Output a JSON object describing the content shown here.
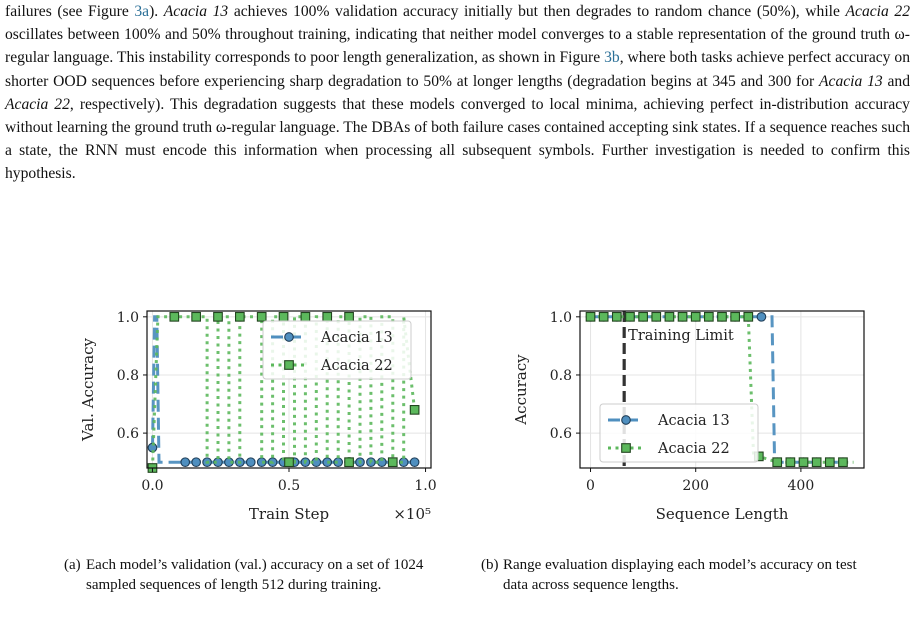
{
  "paragraph": {
    "s1": "failures (see Figure ",
    "ref_3a": "3a",
    "s2": "). ",
    "m13": "Acacia 13",
    "s3": " achieves 100% validation accuracy initially but then degrades to random chance (50%), while ",
    "m22": "Acacia 22",
    "s4": " oscillates between 100% and 50% throughout training, indicating that neither model converges to a stable representation of the ground truth ω-regular language. This instability corresponds to poor length generalization, as shown in Figure ",
    "ref_3b": "3b",
    "s5": ", where both tasks achieve perfect accuracy on shorter OOD sequences before experiencing sharp degradation to 50% at longer lengths (degradation begins at 345 and 300 for ",
    "m13b": "Acacia 13",
    "s6": " and ",
    "m22b": "Acacia 22",
    "s7": ", respectively). This degradation suggests that these models converged to local minima, achieving perfect in-distribution accuracy without learning the ground truth ω-regular language. The DBAs of both failure cases contained accepting sink states. If a sequence reaches such a state, the RNN must encode this information when processing all subsequent symbols. Further investigation is needed to confirm this hypothesis."
  },
  "colors": {
    "acacia13": "#4f8fbf",
    "acacia22": "#5cb85c",
    "limit": "#333333"
  },
  "chart_data": [
    {
      "type": "line",
      "xlabel": "Train Step",
      "x_multiplier_label": "×10⁵",
      "ylabel": "Val. Accuracy",
      "xlim": [
        -0.02,
        1.02
      ],
      "ylim": [
        0.48,
        1.02
      ],
      "xticks": [
        0.0,
        0.5,
        1.0
      ],
      "xtick_labels": [
        "0.0",
        "0.5",
        "1.0"
      ],
      "yticks": [
        0.6,
        0.8,
        1.0
      ],
      "ytick_labels": [
        "0.6",
        "0.8",
        "1.0"
      ],
      "grid": true,
      "legend": "top-right",
      "series": [
        {
          "name": "Acacia 13",
          "style": "dashed",
          "marker": "circle",
          "x": [
            0.0,
            0.008,
            0.016,
            0.024,
            0.12,
            0.16,
            0.2,
            0.24,
            0.28,
            0.32,
            0.36,
            0.4,
            0.44,
            0.48,
            0.52,
            0.56,
            0.6,
            0.64,
            0.68,
            0.72,
            0.76,
            0.8,
            0.84,
            0.88,
            0.92,
            0.96
          ],
          "y": [
            0.55,
            1.0,
            1.0,
            0.5,
            0.5,
            0.5,
            0.5,
            0.5,
            0.5,
            0.5,
            0.5,
            0.5,
            0.5,
            0.5,
            0.5,
            0.5,
            0.5,
            0.5,
            0.5,
            0.5,
            0.5,
            0.5,
            0.5,
            0.5,
            0.5,
            0.5
          ],
          "markers_at": [
            0,
            4,
            5,
            6,
            7,
            8,
            9,
            10,
            11,
            12,
            13,
            14,
            15,
            16,
            17,
            18,
            19,
            20,
            21,
            22,
            23,
            24,
            25
          ]
        },
        {
          "name": "Acacia 22",
          "style": "dotted",
          "marker": "square",
          "x": [
            0.0,
            0.02,
            0.04,
            0.08,
            0.16,
            0.2,
            0.2,
            0.24,
            0.24,
            0.28,
            0.28,
            0.32,
            0.32,
            0.4,
            0.4,
            0.44,
            0.44,
            0.48,
            0.48,
            0.52,
            0.52,
            0.56,
            0.56,
            0.6,
            0.6,
            0.64,
            0.64,
            0.68,
            0.68,
            0.72,
            0.72,
            0.76,
            0.76,
            0.8,
            0.8,
            0.84,
            0.84,
            0.88,
            0.88,
            0.92,
            0.92,
            0.96
          ],
          "y": [
            0.48,
            1.0,
            1.0,
            1.0,
            1.0,
            1.0,
            0.5,
            0.5,
            1.0,
            1.0,
            0.5,
            0.5,
            1.0,
            1.0,
            0.5,
            0.5,
            1.0,
            1.0,
            0.5,
            0.5,
            1.0,
            1.0,
            0.5,
            0.5,
            1.0,
            1.0,
            0.5,
            0.5,
            1.0,
            1.0,
            0.5,
            0.5,
            1.0,
            1.0,
            0.5,
            0.5,
            1.0,
            1.0,
            0.5,
            0.5,
            1.0,
            0.68
          ],
          "markers": [
            [
              0.0,
              0.48
            ],
            [
              0.08,
              1.0
            ],
            [
              0.16,
              1.0
            ],
            [
              0.24,
              1.0
            ],
            [
              0.32,
              1.0
            ],
            [
              0.4,
              1.0
            ],
            [
              0.48,
              1.0
            ],
            [
              0.56,
              1.0
            ],
            [
              0.64,
              1.0
            ],
            [
              0.72,
              1.0
            ],
            [
              0.5,
              0.5
            ],
            [
              0.72,
              0.5
            ],
            [
              0.88,
              0.5
            ],
            [
              0.96,
              0.68
            ]
          ]
        }
      ]
    },
    {
      "type": "line",
      "xlabel": "Sequence Length",
      "ylabel": "Accuracy",
      "xlim": [
        -20,
        520
      ],
      "ylim": [
        0.48,
        1.02
      ],
      "xticks": [
        0,
        200,
        400
      ],
      "xtick_labels": [
        "0",
        "200",
        "400"
      ],
      "yticks": [
        0.6,
        0.8,
        1.0
      ],
      "ytick_labels": [
        "0.6",
        "0.8",
        "1.0"
      ],
      "grid": true,
      "legend": "bottom-left",
      "annotation": {
        "text": "Training Limit",
        "x": 64
      },
      "series": [
        {
          "name": "Acacia 13",
          "style": "dashed",
          "marker": "circle",
          "x": [
            0,
            25,
            50,
            75,
            100,
            125,
            150,
            175,
            200,
            225,
            250,
            275,
            300,
            325,
            345,
            350,
            355,
            380,
            405,
            430,
            455,
            480
          ],
          "y": [
            1.0,
            1.0,
            1.0,
            1.0,
            1.0,
            1.0,
            1.0,
            1.0,
            1.0,
            1.0,
            1.0,
            1.0,
            1.0,
            1.0,
            1.0,
            0.5,
            0.5,
            0.5,
            0.5,
            0.5,
            0.5,
            0.5
          ],
          "markers_at": [
            0,
            1,
            2,
            3,
            4,
            5,
            6,
            7,
            8,
            9,
            10,
            11,
            12,
            13,
            16,
            17,
            18,
            19,
            20,
            21
          ]
        },
        {
          "name": "Acacia 22",
          "style": "dotted",
          "marker": "square",
          "x": [
            0,
            25,
            50,
            75,
            100,
            125,
            150,
            175,
            200,
            225,
            250,
            275,
            300,
            310,
            320,
            355,
            380,
            405,
            430,
            455,
            480,
            500
          ],
          "y": [
            1.0,
            1.0,
            1.0,
            1.0,
            1.0,
            1.0,
            1.0,
            1.0,
            1.0,
            1.0,
            1.0,
            1.0,
            1.0,
            0.52,
            0.52,
            0.5,
            0.5,
            0.5,
            0.5,
            0.5,
            0.5,
            0.5
          ],
          "markers_at": [
            0,
            1,
            2,
            3,
            4,
            5,
            6,
            7,
            8,
            9,
            10,
            11,
            12,
            14,
            15,
            16,
            17,
            18,
            19,
            20
          ]
        }
      ]
    }
  ],
  "captions": {
    "a_tag": "(a)",
    "a_text": "Each model’s validation (val.) accuracy on a set of 1024 sampled sequences of length 512 during training.",
    "b_tag": "(b)",
    "b_text": "Range evaluation displaying each model’s accuracy on test data across sequence lengths."
  }
}
